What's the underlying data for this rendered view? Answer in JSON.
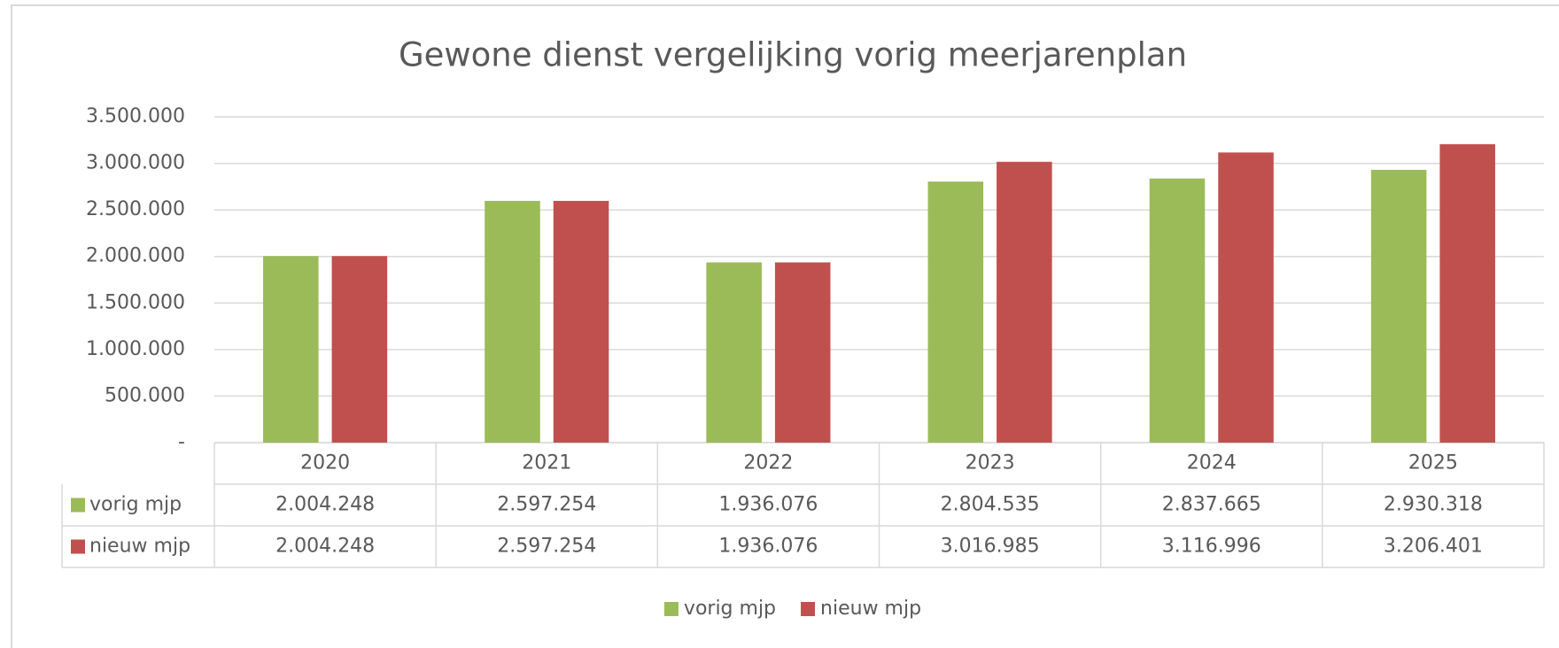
{
  "chart_data": {
    "type": "bar",
    "title": "Gewone dienst vergelijking vorig meerjarenplan",
    "categories": [
      "2020",
      "2021",
      "2022",
      "2023",
      "2024",
      "2025"
    ],
    "series": [
      {
        "name": "vorig mjp",
        "color": "#9bbb59",
        "values": [
          2004248,
          2597254,
          1936076,
          2804535,
          2837665,
          2930318
        ],
        "value_labels": [
          "2.004.248",
          "2.597.254",
          "1.936.076",
          "2.804.535",
          "2.837.665",
          "2.930.318"
        ]
      },
      {
        "name": "nieuw mjp",
        "color": "#c0504d",
        "values": [
          2004248,
          2597254,
          1936076,
          3016985,
          3116996,
          3206401
        ],
        "value_labels": [
          "2.004.248",
          "2.597.254",
          "1.936.076",
          "3.016.985",
          "3.116.996",
          "3.206.401"
        ]
      }
    ],
    "ylim": [
      0,
      3500000
    ],
    "yticks": [
      {
        "value": 0,
        "label": "-"
      },
      {
        "value": 500000,
        "label": "500.000"
      },
      {
        "value": 1000000,
        "label": "1.000.000"
      },
      {
        "value": 1500000,
        "label": "1.500.000"
      },
      {
        "value": 2000000,
        "label": "2.000.000"
      },
      {
        "value": 2500000,
        "label": "2.500.000"
      },
      {
        "value": 3000000,
        "label": "3.000.000"
      },
      {
        "value": 3500000,
        "label": "3.500.000"
      }
    ],
    "grid": true,
    "legend": "bottom"
  }
}
